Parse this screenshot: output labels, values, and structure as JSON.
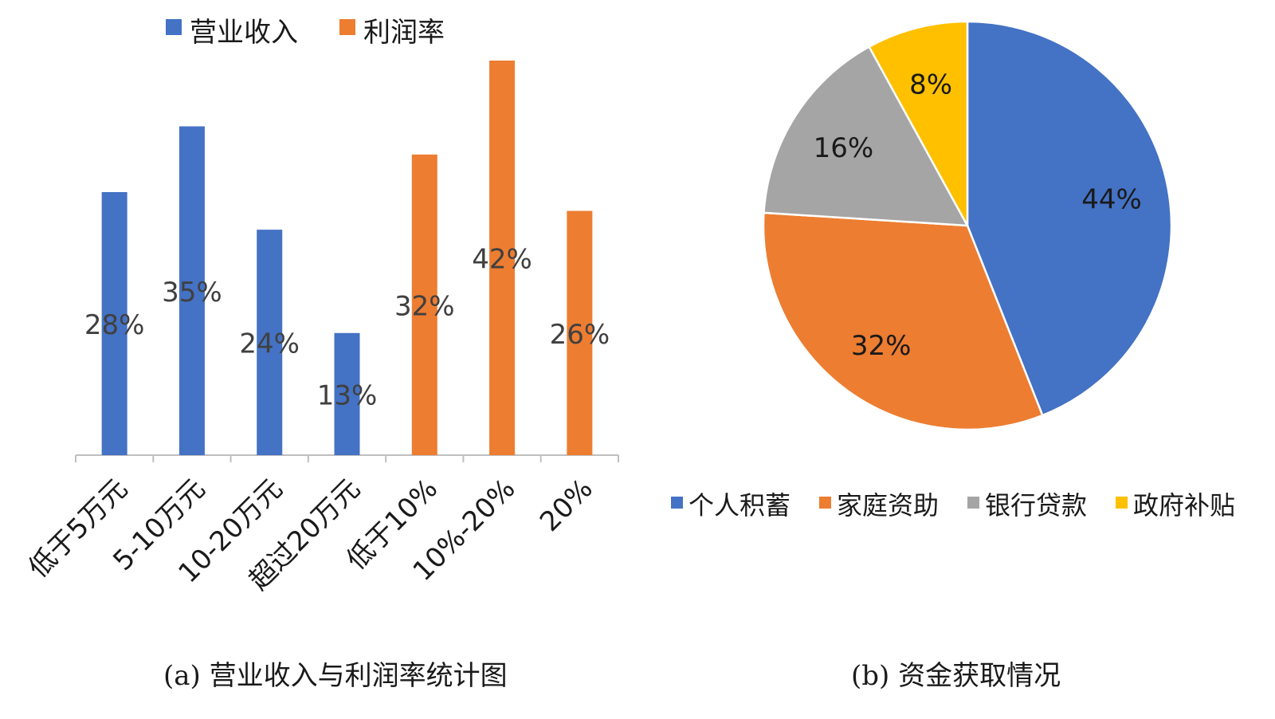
{
  "chart_data": [
    {
      "type": "bar",
      "caption": "(a) 营业收入与利润率统计图",
      "categories": [
        "低于5万元",
        "5-10万元",
        "10-20万元",
        "超过20万元",
        "低于10%",
        "10%-20%",
        "20%"
      ],
      "series": [
        {
          "name": "营业收入",
          "color": "#4472C4",
          "values": [
            28,
            35,
            24,
            13,
            null,
            null,
            null
          ]
        },
        {
          "name": "利润率",
          "color": "#ED7D31",
          "values": [
            null,
            null,
            null,
            null,
            32,
            42,
            26
          ]
        }
      ],
      "data_labels": [
        "28%",
        "35%",
        "24%",
        "13%",
        "32%",
        "42%",
        "26%"
      ],
      "legend_position": "top",
      "ylim": [
        0,
        42
      ],
      "grid": false
    },
    {
      "type": "pie",
      "caption": "(b) 资金获取情况",
      "slices": [
        {
          "label": "个人积蓄",
          "value": 44,
          "display": "44%",
          "color": "#4472C4"
        },
        {
          "label": "家庭资助",
          "value": 32,
          "display": "32%",
          "color": "#ED7D31"
        },
        {
          "label": "银行贷款",
          "value": 16,
          "display": "16%",
          "color": "#A5A5A5"
        },
        {
          "label": "政府补贴",
          "value": 8,
          "display": "8%",
          "color": "#FFC000"
        }
      ],
      "legend_position": "bottom"
    }
  ]
}
